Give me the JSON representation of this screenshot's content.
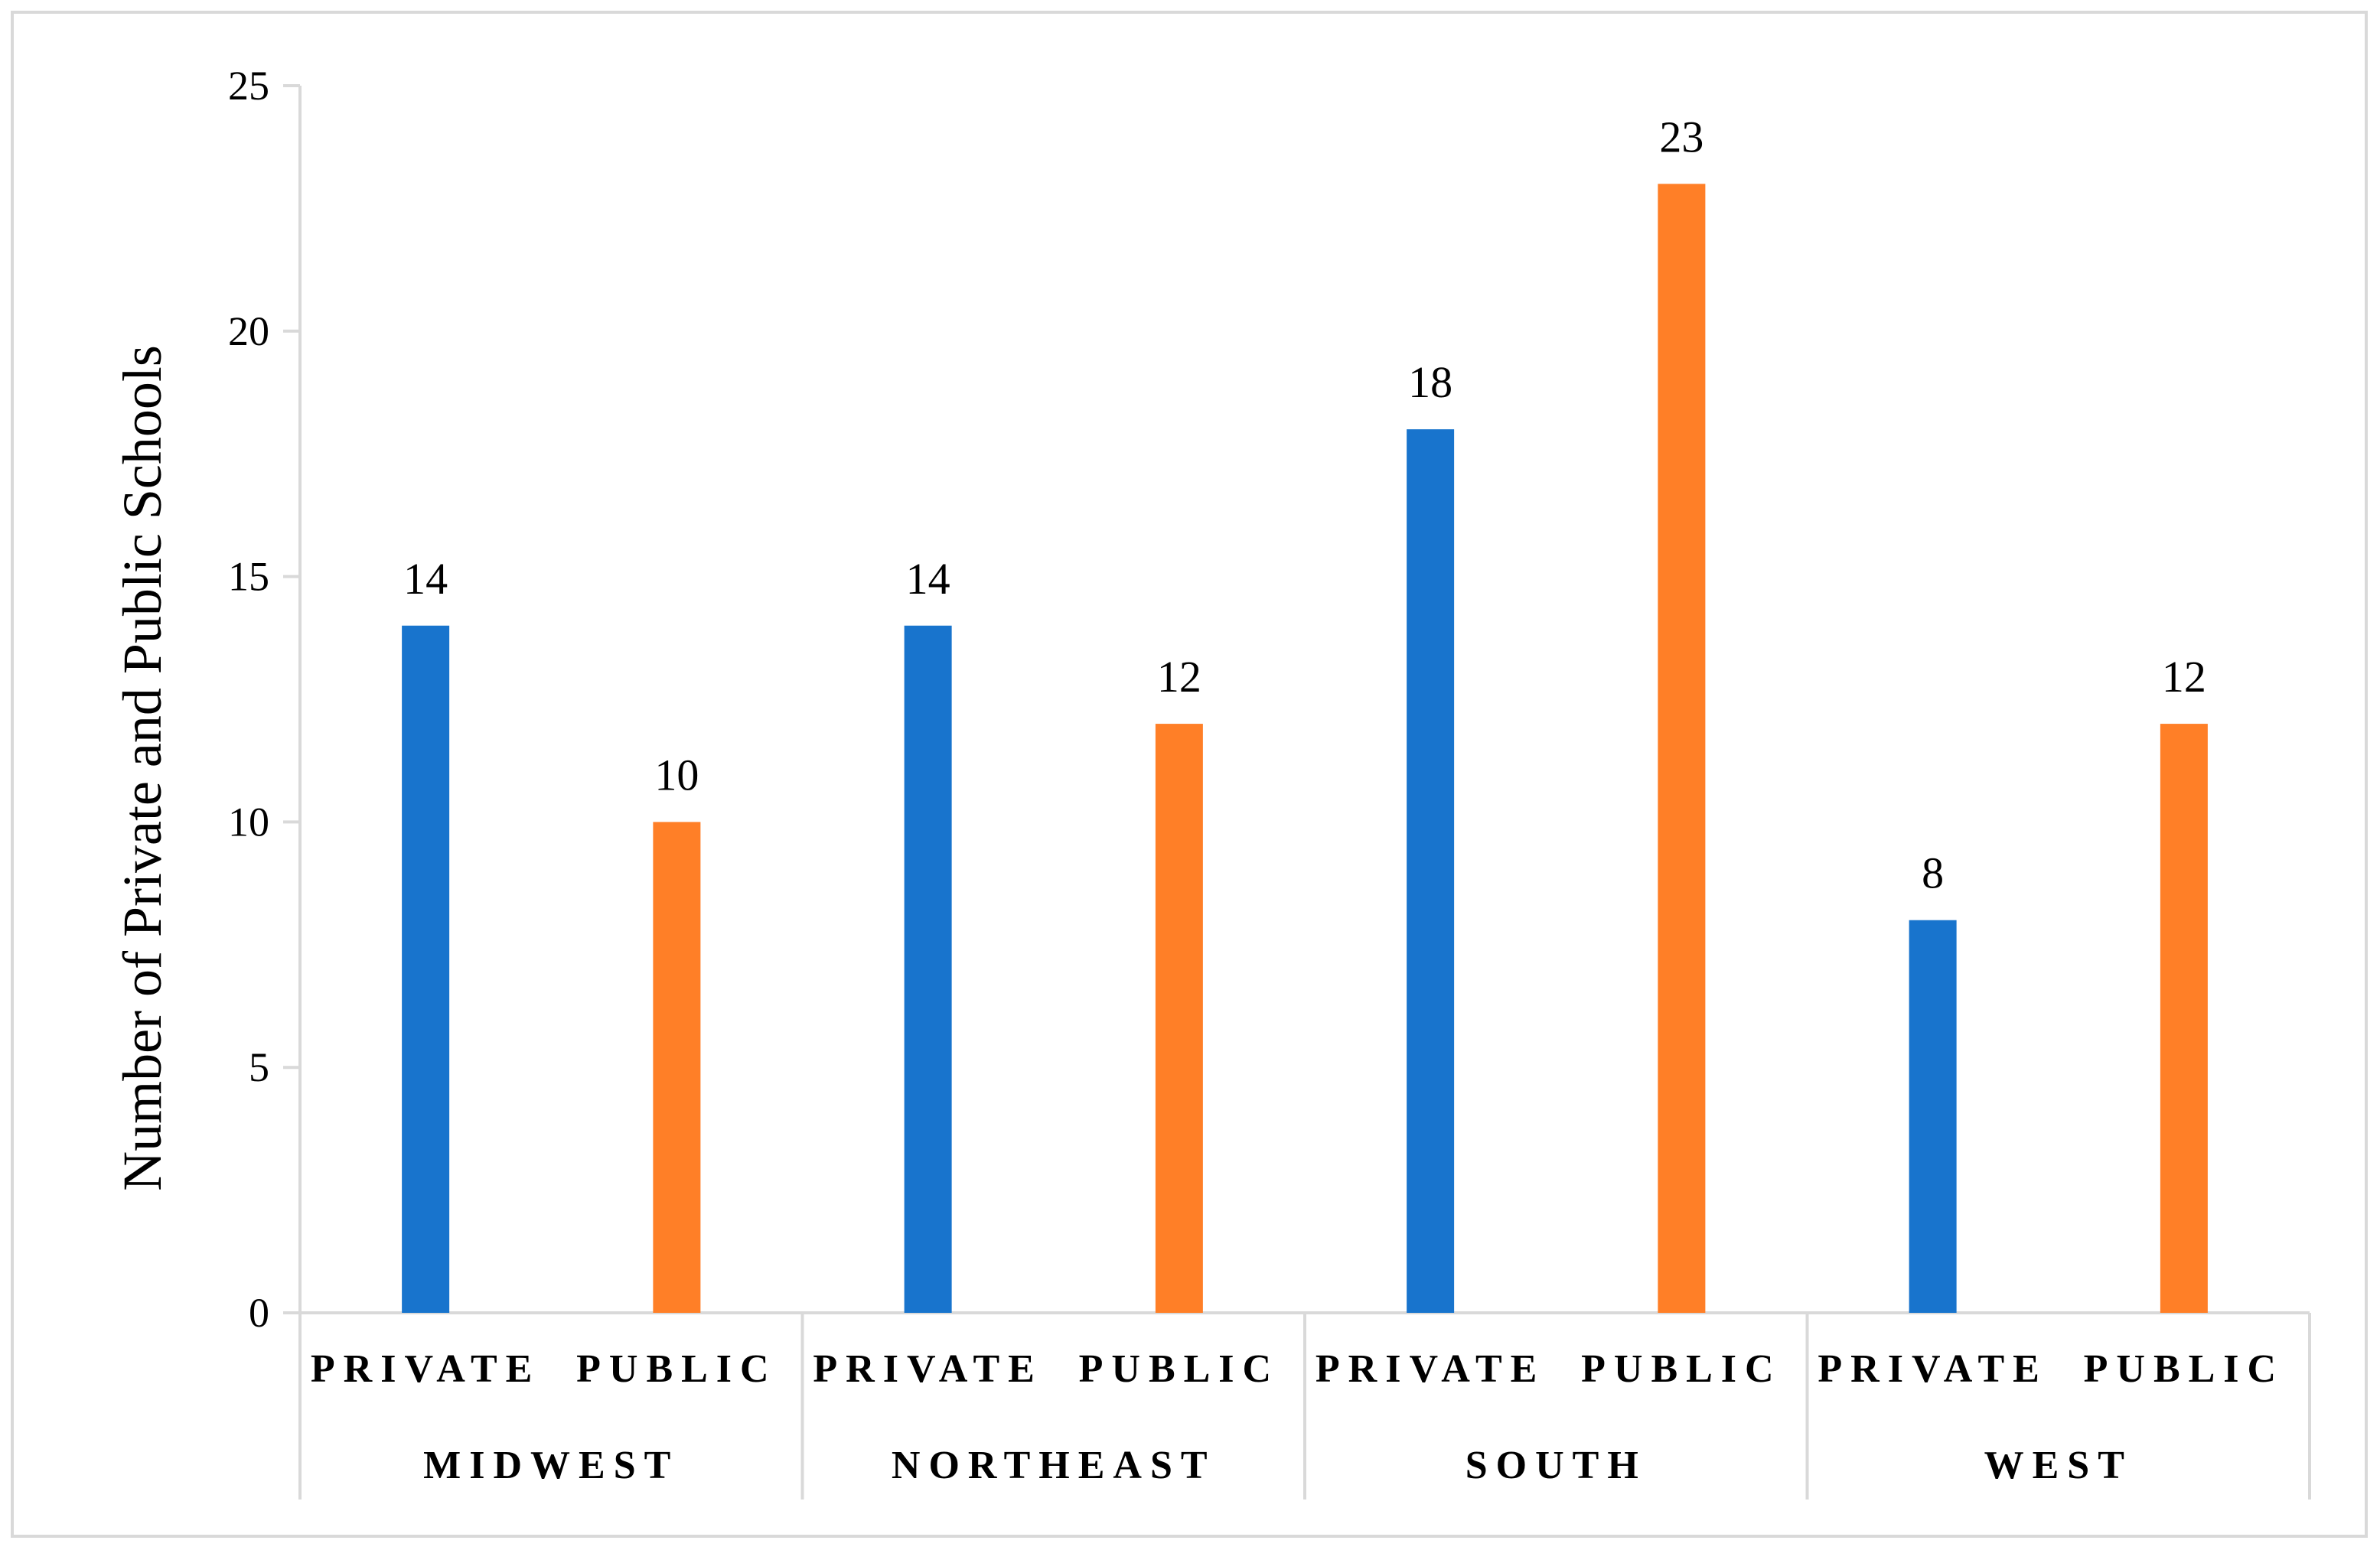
{
  "chart_data": {
    "type": "bar",
    "title": "",
    "xlabel": "",
    "ylabel": "Number of  Private and Public Schools",
    "ylim": [
      0,
      25
    ],
    "yticks": [
      0,
      5,
      10,
      15,
      20,
      25
    ],
    "grid": false,
    "legend": "none",
    "groups": [
      "MIDWEST",
      "NORTHEAST",
      "SOUTH",
      "WEST"
    ],
    "categories": [
      "PRIVATE",
      "PUBLIC"
    ],
    "colors": {
      "PRIVATE": "#1874CD",
      "PUBLIC": "#FF7F27",
      "axis": "#d9d9d9"
    },
    "bars": [
      {
        "group": "MIDWEST",
        "category": "PRIVATE",
        "value": 14
      },
      {
        "group": "MIDWEST",
        "category": "PUBLIC",
        "value": 10
      },
      {
        "group": "NORTHEAST",
        "category": "PRIVATE",
        "value": 14
      },
      {
        "group": "NORTHEAST",
        "category": "PUBLIC",
        "value": 12
      },
      {
        "group": "SOUTH",
        "category": "PRIVATE",
        "value": 18
      },
      {
        "group": "SOUTH",
        "category": "PUBLIC",
        "value": 23
      },
      {
        "group": "WEST",
        "category": "PRIVATE",
        "value": 8
      },
      {
        "group": "WEST",
        "category": "PUBLIC",
        "value": 12
      }
    ]
  }
}
